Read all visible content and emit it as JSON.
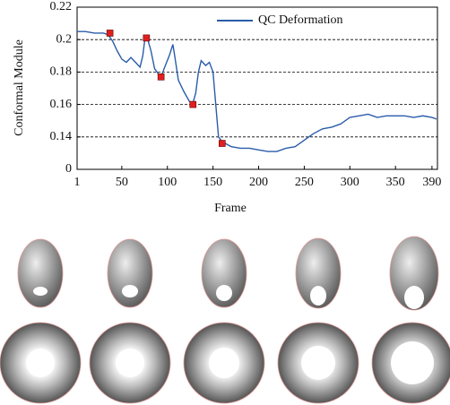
{
  "chart_data": {
    "type": "line",
    "x_label": "Frame",
    "y_label": "Conformal Module",
    "xlim": [
      1,
      396
    ],
    "xticks": [
      1,
      50,
      100,
      150,
      200,
      250,
      300,
      350,
      390
    ],
    "ylim": [
      0,
      0.22
    ],
    "y_break": [
      0,
      0.12
    ],
    "yticks": [
      0,
      0.14,
      0.16,
      0.18,
      0.2,
      0.22
    ],
    "grid": true,
    "legend": "upper right",
    "series": [
      {
        "name": "QC Deformation",
        "color": "#2a5caa",
        "x": [
          1,
          10,
          20,
          30,
          35,
          40,
          45,
          50,
          55,
          60,
          65,
          70,
          73,
          75,
          78,
          82,
          86,
          90,
          93,
          97,
          102,
          106,
          108,
          112,
          118,
          124,
          128,
          131,
          134,
          137,
          142,
          146,
          150,
          153,
          156,
          160,
          170,
          180,
          190,
          200,
          210,
          220,
          230,
          240,
          250,
          260,
          270,
          280,
          290,
          300,
          310,
          320,
          330,
          340,
          350,
          360,
          370,
          380,
          390,
          395
        ],
        "values": [
          0.205,
          0.205,
          0.204,
          0.204,
          0.203,
          0.199,
          0.193,
          0.188,
          0.186,
          0.189,
          0.186,
          0.183,
          0.19,
          0.199,
          0.201,
          0.193,
          0.182,
          0.179,
          0.177,
          0.183,
          0.19,
          0.197,
          0.19,
          0.175,
          0.168,
          0.162,
          0.161,
          0.167,
          0.18,
          0.187,
          0.184,
          0.186,
          0.18,
          0.16,
          0.14,
          0.137,
          0.134,
          0.133,
          0.133,
          0.132,
          0.131,
          0.131,
          0.133,
          0.134,
          0.138,
          0.142,
          0.145,
          0.146,
          0.148,
          0.152,
          0.153,
          0.154,
          0.152,
          0.153,
          0.153,
          0.153,
          0.152,
          0.153,
          0.152,
          0.151
        ]
      }
    ],
    "markers": {
      "color": "#e02020",
      "x": [
        37,
        77,
        93,
        128,
        160
      ],
      "values": [
        0.204,
        0.201,
        0.177,
        0.16,
        0.136
      ]
    }
  }
}
